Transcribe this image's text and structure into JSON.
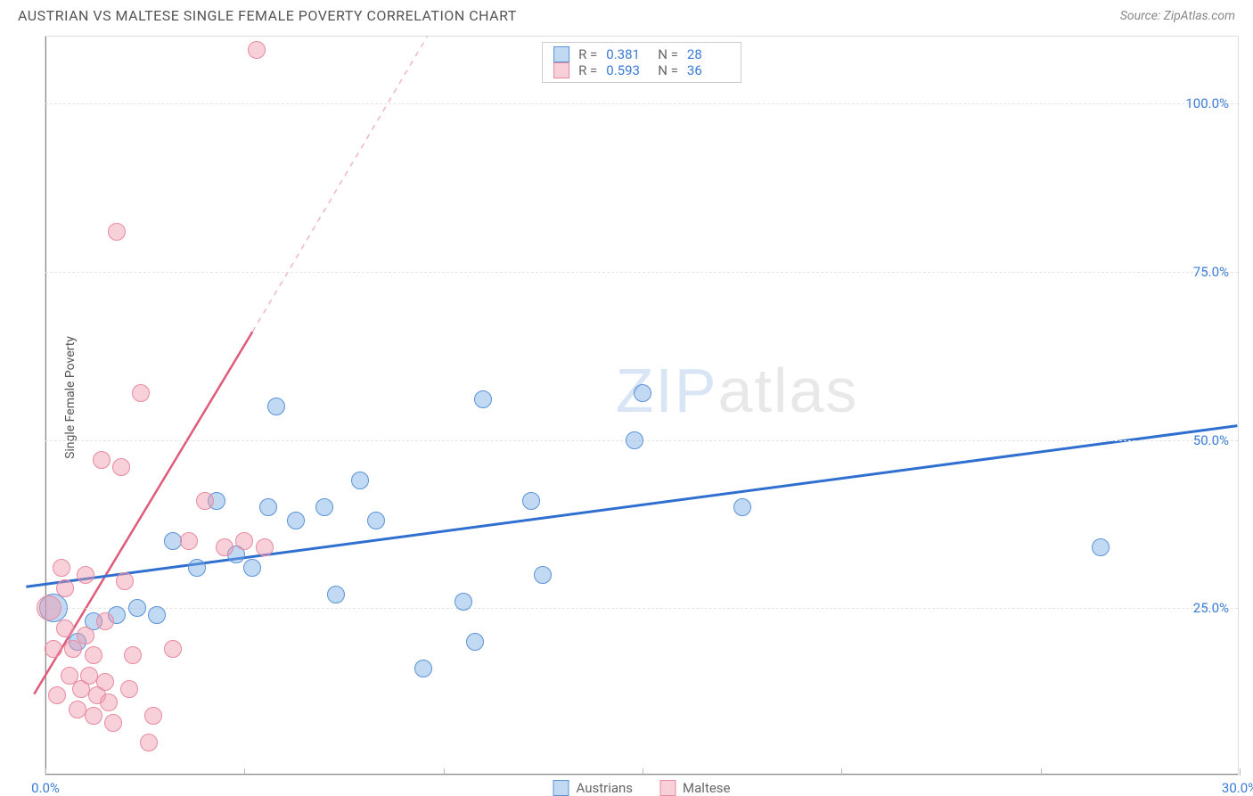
{
  "title": "AUSTRIAN VS MALTESE SINGLE FEMALE POVERTY CORRELATION CHART",
  "source": "Source: ZipAtlas.com",
  "ylabel": "Single Female Poverty",
  "watermark": {
    "part1": "ZIP",
    "part2": "atlas"
  },
  "chart": {
    "type": "scatter",
    "background_color": "#ffffff",
    "grid_color": "#e5e5e5",
    "axis_color": "#888888",
    "xlim": [
      0,
      30
    ],
    "ylim": [
      0,
      110
    ],
    "x_ticks": [
      0,
      5,
      10,
      15,
      20,
      25,
      30
    ],
    "x_tick_labels": {
      "0": "0.0%",
      "30": "30.0%"
    },
    "y_gridlines": [
      25,
      50,
      75,
      100
    ],
    "y_tick_labels": {
      "25": "25.0%",
      "50": "50.0%",
      "75": "75.0%",
      "100": "100.0%"
    },
    "x_label_color": "#3a7bd5",
    "y_label_color": "#3a7bd5",
    "marker_radius": 10,
    "marker_opacity": 0.6,
    "series": [
      {
        "name": "Austrians",
        "color_fill": "rgba(120,170,230,0.45)",
        "color_stroke": "#5a93d6",
        "r_label": "R  =",
        "r_value": "0.381",
        "n_label": "N  =",
        "n_value": "28",
        "trend": {
          "x1": -0.5,
          "y1": 28,
          "x2": 30,
          "y2": 52,
          "stroke": "#2f6fd0",
          "width": 3,
          "dash": "none"
        },
        "points": [
          {
            "x": 0.2,
            "y": 25,
            "r": 16
          },
          {
            "x": 0.8,
            "y": 20
          },
          {
            "x": 1.2,
            "y": 23
          },
          {
            "x": 1.8,
            "y": 24
          },
          {
            "x": 2.3,
            "y": 25
          },
          {
            "x": 2.8,
            "y": 24
          },
          {
            "x": 3.2,
            "y": 35
          },
          {
            "x": 3.8,
            "y": 31
          },
          {
            "x": 4.3,
            "y": 41
          },
          {
            "x": 4.8,
            "y": 33
          },
          {
            "x": 5.2,
            "y": 31
          },
          {
            "x": 5.6,
            "y": 40
          },
          {
            "x": 5.8,
            "y": 55
          },
          {
            "x": 6.3,
            "y": 38
          },
          {
            "x": 7.0,
            "y": 40
          },
          {
            "x": 7.3,
            "y": 27
          },
          {
            "x": 7.9,
            "y": 44
          },
          {
            "x": 8.3,
            "y": 38
          },
          {
            "x": 9.5,
            "y": 16
          },
          {
            "x": 10.5,
            "y": 26
          },
          {
            "x": 10.8,
            "y": 20
          },
          {
            "x": 11.0,
            "y": 56
          },
          {
            "x": 12.2,
            "y": 41
          },
          {
            "x": 12.5,
            "y": 30
          },
          {
            "x": 14.8,
            "y": 50
          },
          {
            "x": 15.0,
            "y": 57
          },
          {
            "x": 17.5,
            "y": 40
          },
          {
            "x": 26.5,
            "y": 34
          }
        ]
      },
      {
        "name": "Maltese",
        "color_fill": "rgba(240,150,170,0.45)",
        "color_stroke": "#e88aa0",
        "r_label": "R  =",
        "r_value": "0.593",
        "n_label": "N  =",
        "n_value": "36",
        "trend_solid": {
          "x1": -0.3,
          "y1": 12,
          "x2": 5.2,
          "y2": 66,
          "stroke": "#e05a7a",
          "width": 2.5
        },
        "trend_dash": {
          "x1": 5.2,
          "y1": 66,
          "x2": 9.6,
          "y2": 110,
          "stroke": "#f0b6c4",
          "width": 1.5,
          "dash": "6 6"
        },
        "points": [
          {
            "x": 0.1,
            "y": 25,
            "r": 14
          },
          {
            "x": 0.2,
            "y": 19
          },
          {
            "x": 0.3,
            "y": 12
          },
          {
            "x": 0.4,
            "y": 31
          },
          {
            "x": 0.5,
            "y": 28
          },
          {
            "x": 0.5,
            "y": 22
          },
          {
            "x": 0.6,
            "y": 15
          },
          {
            "x": 0.7,
            "y": 19
          },
          {
            "x": 0.8,
            "y": 10
          },
          {
            "x": 0.9,
            "y": 13
          },
          {
            "x": 1.0,
            "y": 30
          },
          {
            "x": 1.0,
            "y": 21
          },
          {
            "x": 1.1,
            "y": 15
          },
          {
            "x": 1.2,
            "y": 9
          },
          {
            "x": 1.2,
            "y": 18
          },
          {
            "x": 1.3,
            "y": 12
          },
          {
            "x": 1.4,
            "y": 47
          },
          {
            "x": 1.5,
            "y": 23
          },
          {
            "x": 1.5,
            "y": 14
          },
          {
            "x": 1.6,
            "y": 11
          },
          {
            "x": 1.7,
            "y": 8
          },
          {
            "x": 1.8,
            "y": 81
          },
          {
            "x": 1.9,
            "y": 46
          },
          {
            "x": 2.0,
            "y": 29
          },
          {
            "x": 2.1,
            "y": 13
          },
          {
            "x": 2.2,
            "y": 18
          },
          {
            "x": 2.4,
            "y": 57
          },
          {
            "x": 2.6,
            "y": 5
          },
          {
            "x": 2.7,
            "y": 9
          },
          {
            "x": 3.2,
            "y": 19
          },
          {
            "x": 3.6,
            "y": 35
          },
          {
            "x": 4.0,
            "y": 41
          },
          {
            "x": 4.5,
            "y": 34
          },
          {
            "x": 5.0,
            "y": 35
          },
          {
            "x": 5.3,
            "y": 108
          },
          {
            "x": 5.5,
            "y": 34
          }
        ]
      }
    ]
  },
  "legend": {
    "items": [
      {
        "label": "Austrians",
        "fill": "rgba(120,170,230,0.45)",
        "stroke": "#5a93d6"
      },
      {
        "label": "Maltese",
        "fill": "rgba(240,150,170,0.45)",
        "stroke": "#e88aa0"
      }
    ]
  }
}
